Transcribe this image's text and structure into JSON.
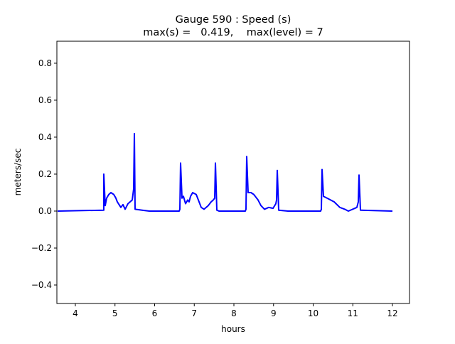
{
  "chart_data": {
    "type": "line",
    "title": "Gauge 590 : Speed (s)",
    "subtitle": "max(s) =   0.419,    max(level) = 7",
    "xlabel": "hours",
    "ylabel": "meters/sec",
    "xlim": [
      3.534,
      12.43
    ],
    "ylim": [
      -0.5,
      0.919
    ],
    "xticks": [
      4,
      5,
      6,
      7,
      8,
      9,
      10,
      11,
      12
    ],
    "xtick_labels": [
      "4",
      "5",
      "6",
      "7",
      "8",
      "9",
      "10",
      "11",
      "12"
    ],
    "yticks": [
      -0.4,
      -0.2,
      0.0,
      0.2,
      0.4,
      0.6,
      0.8
    ],
    "ytick_labels": [
      "−0.4",
      "−0.2",
      "0.0",
      "0.2",
      "0.4",
      "0.6",
      "0.8"
    ],
    "grid": false,
    "series": [
      {
        "name": "speed",
        "color": "#0000ff",
        "x": [
          3.552,
          4.717,
          4.717,
          4.753,
          4.789,
          4.843,
          4.897,
          4.969,
          5.022,
          5.058,
          5.148,
          5.202,
          5.256,
          5.327,
          5.435,
          5.471,
          5.489,
          5.507,
          5.686,
          5.865,
          6.619,
          6.637,
          6.655,
          6.691,
          6.726,
          6.78,
          6.834,
          6.87,
          6.906,
          6.96,
          7.049,
          7.103,
          7.175,
          7.247,
          7.354,
          7.426,
          7.48,
          7.516,
          7.534,
          7.57,
          7.623,
          8.287,
          8.305,
          8.323,
          8.359,
          8.43,
          8.502,
          8.574,
          8.61,
          8.682,
          8.771,
          8.879,
          8.987,
          9.058,
          9.076,
          9.094,
          9.13,
          9.363,
          10.188,
          10.206,
          10.224,
          10.26,
          10.35,
          10.439,
          10.529,
          10.673,
          10.798,
          10.888,
          11.103,
          11.139,
          11.157,
          11.193,
          12.0
        ],
        "y": [
          0,
          0.005,
          0.2,
          0.03,
          0.07,
          0.09,
          0.1,
          0.09,
          0.07,
          0.05,
          0.02,
          0.035,
          0.01,
          0.04,
          0.06,
          0.12,
          0.419,
          0.01,
          0.005,
          0,
          0,
          0.01,
          0.26,
          0.07,
          0.08,
          0.04,
          0.06,
          0.05,
          0.08,
          0.1,
          0.09,
          0.06,
          0.02,
          0.01,
          0.03,
          0.05,
          0.06,
          0.07,
          0.26,
          0.005,
          0,
          0,
          0.01,
          0.295,
          0.1,
          0.1,
          0.09,
          0.07,
          0.06,
          0.03,
          0.01,
          0.02,
          0.015,
          0.04,
          0.06,
          0.22,
          0.005,
          0,
          0,
          0.01,
          0.225,
          0.08,
          0.07,
          0.06,
          0.05,
          0.02,
          0.01,
          0,
          0.02,
          0.05,
          0.195,
          0.005,
          0
        ]
      }
    ]
  }
}
